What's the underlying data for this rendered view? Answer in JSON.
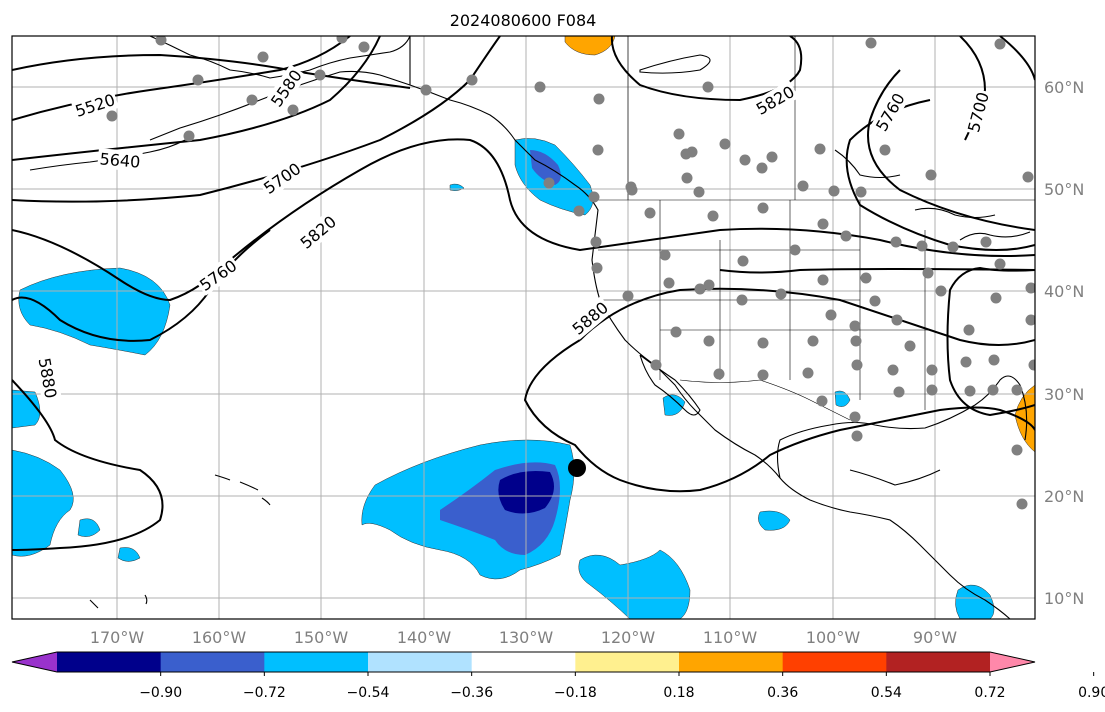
{
  "map": {
    "title": "2024080600 F084",
    "lat_labels": [
      "60°N",
      "50°N",
      "40°N",
      "30°N",
      "20°N",
      "10°N"
    ],
    "lon_labels": [
      "170°W",
      "160°W",
      "150°W",
      "140°W",
      "130°W",
      "120°W",
      "110°W",
      "100°W",
      "90°W"
    ],
    "contour_labels": [
      "5520",
      "5580",
      "5640",
      "5700",
      "5760",
      "5820",
      "5880",
      "5880",
      "5820",
      "5760",
      "5700"
    ],
    "colorbar": {
      "tick_labels": [
        "−0.90",
        "−0.72",
        "−0.54",
        "−0.36",
        "−0.18",
        "0.18",
        "0.36",
        "0.54",
        "0.72",
        "0.90"
      ],
      "colors": [
        "#9932cc",
        "#00008b",
        "#3a5fcd",
        "#00bfff",
        "#b0e2ff",
        "#ffffff",
        "#fff08f",
        "#ffa500",
        "#ff4000",
        "#b22222",
        "#ff88aa"
      ]
    },
    "marker_color": "#808080"
  }
}
